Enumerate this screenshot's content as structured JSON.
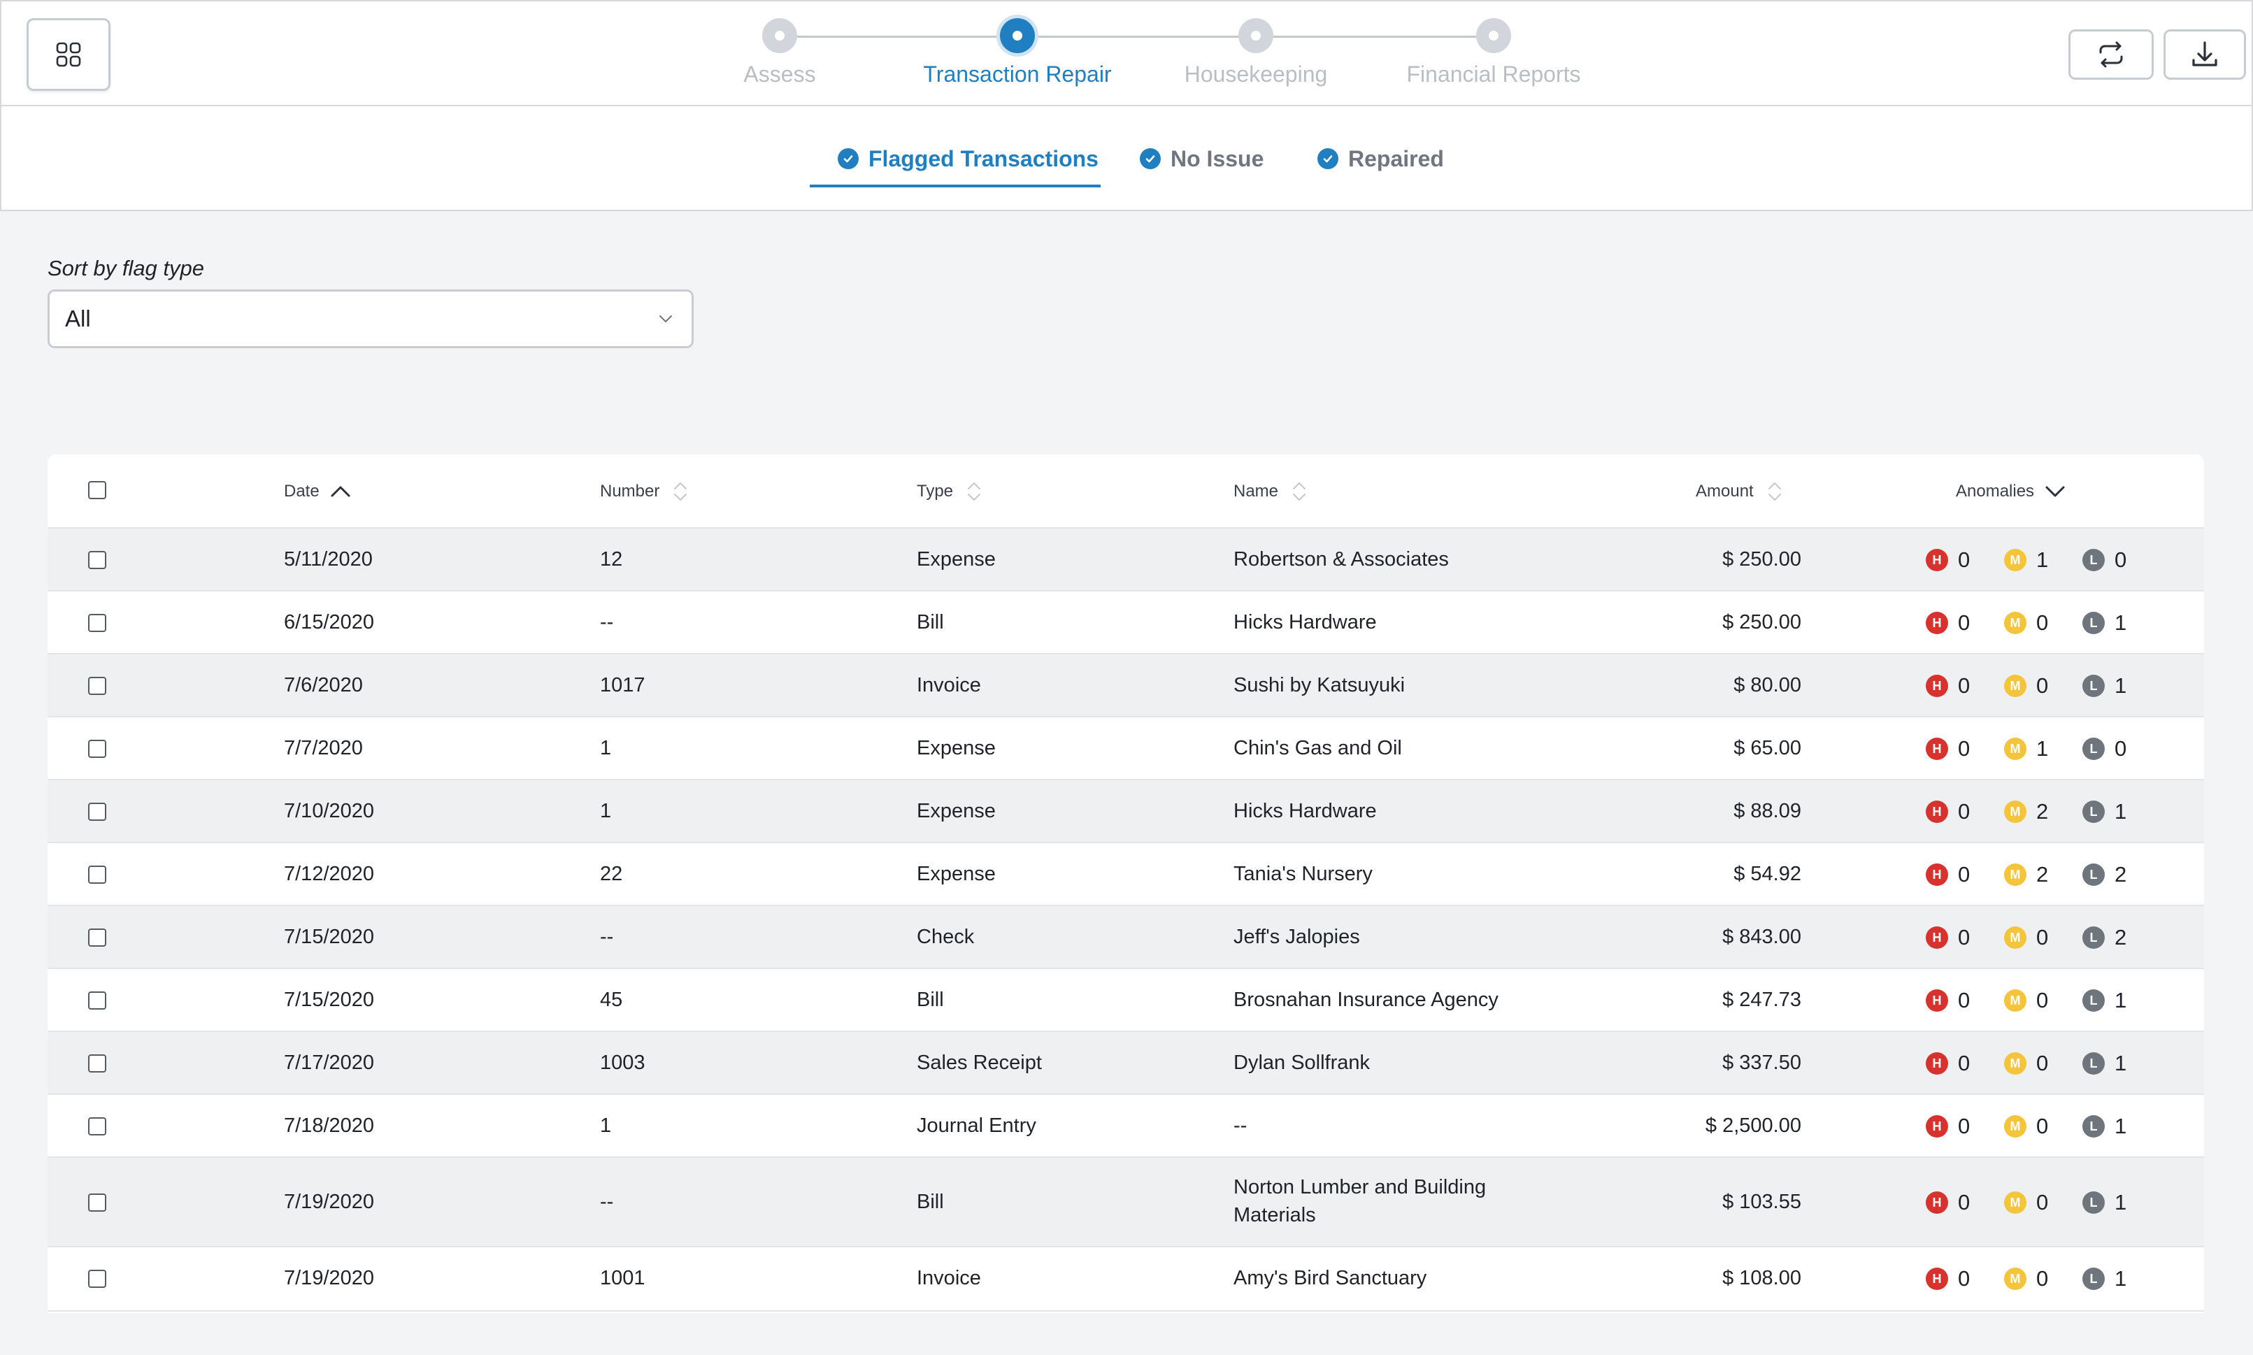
{
  "stepper": {
    "steps": [
      {
        "label": "Assess",
        "active": false
      },
      {
        "label": "Transaction Repair",
        "active": true
      },
      {
        "label": "Housekeeping",
        "active": false
      },
      {
        "label": "Financial Reports",
        "active": false
      }
    ]
  },
  "icons": {
    "apps": "apps-grid-icon",
    "sync": "sync-icon",
    "download": "download-icon"
  },
  "subtabs": [
    {
      "label": "Flagged Transactions",
      "active": true
    },
    {
      "label": "No Issue",
      "active": false
    },
    {
      "label": "Repaired",
      "active": false
    }
  ],
  "filter": {
    "label": "Sort by flag type",
    "value": "All"
  },
  "table": {
    "headers": {
      "date": "Date",
      "number": "Number",
      "type": "Type",
      "name": "Name",
      "amount": "Amount",
      "anomalies": "Anomalies"
    },
    "badge_letters": {
      "high": "H",
      "medium": "M",
      "low": "L"
    },
    "rows": [
      {
        "date": "5/11/2020",
        "number": "12",
        "type": "Expense",
        "name": "Robertson & Associates",
        "name2": "",
        "amount": "$ 250.00",
        "h": "0",
        "m": "1",
        "l": "0"
      },
      {
        "date": "6/15/2020",
        "number": "--",
        "type": "Bill",
        "name": "Hicks Hardware",
        "name2": "",
        "amount": "$ 250.00",
        "h": "0",
        "m": "0",
        "l": "1"
      },
      {
        "date": "7/6/2020",
        "number": "1017",
        "type": "Invoice",
        "name": "Sushi by Katsuyuki",
        "name2": "",
        "amount": "$ 80.00",
        "h": "0",
        "m": "0",
        "l": "1"
      },
      {
        "date": "7/7/2020",
        "number": "1",
        "type": "Expense",
        "name": "Chin's Gas and Oil",
        "name2": "",
        "amount": "$ 65.00",
        "h": "0",
        "m": "1",
        "l": "0"
      },
      {
        "date": "7/10/2020",
        "number": "1",
        "type": "Expense",
        "name": "Hicks Hardware",
        "name2": "",
        "amount": "$ 88.09",
        "h": "0",
        "m": "2",
        "l": "1"
      },
      {
        "date": "7/12/2020",
        "number": "22",
        "type": "Expense",
        "name": "Tania's Nursery",
        "name2": "",
        "amount": "$ 54.92",
        "h": "0",
        "m": "2",
        "l": "2"
      },
      {
        "date": "7/15/2020",
        "number": "--",
        "type": "Check",
        "name": "Jeff's Jalopies",
        "name2": "",
        "amount": "$ 843.00",
        "h": "0",
        "m": "0",
        "l": "2"
      },
      {
        "date": "7/15/2020",
        "number": "45",
        "type": "Bill",
        "name": "Brosnahan Insurance Agency",
        "name2": "",
        "amount": "$ 247.73",
        "h": "0",
        "m": "0",
        "l": "1"
      },
      {
        "date": "7/17/2020",
        "number": "1003",
        "type": "Sales Receipt",
        "name": "Dylan Sollfrank",
        "name2": "",
        "amount": "$ 337.50",
        "h": "0",
        "m": "0",
        "l": "1"
      },
      {
        "date": "7/18/2020",
        "number": "1",
        "type": "Journal Entry",
        "name": "--",
        "name2": "",
        "amount": "$ 2,500.00",
        "h": "0",
        "m": "0",
        "l": "1"
      },
      {
        "date": "7/19/2020",
        "number": "--",
        "type": "Bill",
        "name": "Norton Lumber and Building",
        "name2": "Materials",
        "amount": "$ 103.55",
        "h": "0",
        "m": "0",
        "l": "1"
      },
      {
        "date": "7/19/2020",
        "number": "1001",
        "type": "Invoice",
        "name": "Amy's Bird Sanctuary",
        "name2": "",
        "amount": "$ 108.00",
        "h": "0",
        "m": "0",
        "l": "1"
      }
    ]
  }
}
